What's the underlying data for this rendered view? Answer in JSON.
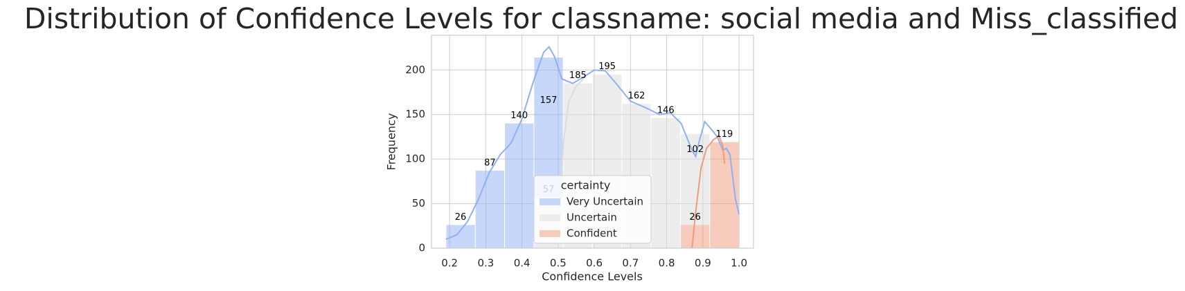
{
  "chart_data": {
    "type": "histogram",
    "title": "Distribution of Confidence Levels for classname: social media and Miss_classified",
    "x_label": "Confidence Levels",
    "y_label": "Frequency",
    "bins": [
      0.19,
      0.271,
      0.352,
      0.433,
      0.514,
      0.595,
      0.676,
      0.757,
      0.838,
      0.919,
      1.0
    ],
    "series": [
      {
        "name": "Very Uncertain",
        "color": "#8fb0f6",
        "values": [
          26,
          87,
          140,
          157,
          0,
          0,
          0,
          0,
          0,
          0
        ],
        "kde": {
          "x": [
            0.19,
            0.22,
            0.25,
            0.28,
            0.31,
            0.34,
            0.37,
            0.4,
            0.43,
            0.46,
            0.475,
            0.49,
            0.51,
            0.54,
            0.57,
            0.6,
            0.63,
            0.66,
            0.7,
            0.74,
            0.78,
            0.81,
            0.84,
            0.87,
            0.88,
            0.89,
            0.905,
            0.92,
            0.94,
            0.955,
            0.965,
            0.975,
            0.99,
            1.0
          ],
          "y": [
            10,
            15,
            30,
            55,
            85,
            105,
            118,
            145,
            185,
            220,
            226,
            215,
            190,
            185,
            192,
            200,
            199,
            185,
            165,
            158,
            150,
            152,
            140,
            110,
            103,
            120,
            142,
            135,
            125,
            110,
            112,
            105,
            55,
            38
          ]
        }
      },
      {
        "name": "Uncertain",
        "color": "#dcdcdc",
        "values": [
          0,
          0,
          0,
          57,
          185,
          195,
          162,
          146,
          102,
          0
        ],
        "kde": {
          "x": [
            0.505,
            0.515,
            0.53,
            0.55,
            0.57
          ],
          "y": [
            45,
            120,
            165,
            182,
            190
          ]
        }
      },
      {
        "name": "Confident",
        "color": "#f09a7c",
        "values": [
          0,
          0,
          0,
          0,
          0,
          0,
          0,
          0,
          26,
          119
        ],
        "kde": {
          "x": [
            0.87,
            0.88,
            0.895,
            0.91,
            0.93,
            0.945,
            0.955,
            0.96
          ],
          "y": [
            0,
            40,
            90,
            112,
            122,
            126,
            115,
            95
          ]
        }
      }
    ],
    "legend_title": "certainty",
    "legend": "lower center",
    "xlim": [
      0.15,
      1.04
    ],
    "ylim": [
      0,
      239
    ],
    "xticks": [
      0.2,
      0.3,
      0.4,
      0.5,
      0.6,
      0.7,
      0.8,
      0.9,
      {
        "value": 1,
        "label": "1.0"
      }
    ],
    "yticks": [
      0,
      50,
      100,
      150,
      200
    ],
    "grid": true
  }
}
